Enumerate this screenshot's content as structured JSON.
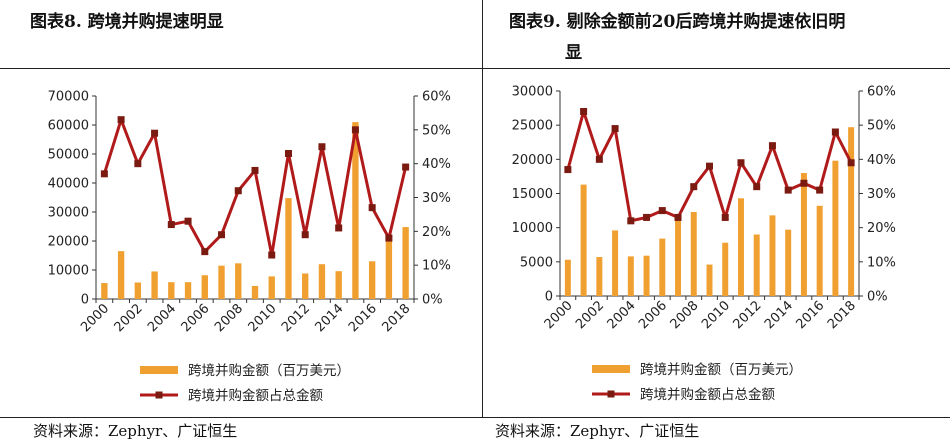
{
  "colors": {
    "bar": "#F0A030",
    "line": "#B01A1A",
    "marker": "#7A1A10",
    "axis": "#333333"
  },
  "left": {
    "title": "图表8. 跨境并购提速明显",
    "source": "资料来源：Zephyr、广证恒生",
    "chart_data": {
      "type": "bar",
      "title": "图表8. 跨境并购提速明显",
      "categories": [
        "2000",
        "2001",
        "2002",
        "2003",
        "2004",
        "2005",
        "2006",
        "2007",
        "2008",
        "2009",
        "2010",
        "2011",
        "2012",
        "2013",
        "2014",
        "2015",
        "2016",
        "2017",
        "2018"
      ],
      "x_tick_labels": [
        "2000",
        "2002",
        "2004",
        "2006",
        "2008",
        "2010",
        "2012",
        "2014",
        "2016",
        "2018"
      ],
      "series": [
        {
          "name": "跨境并购金额（百万美元）",
          "type": "bar",
          "axis": "left",
          "values": [
            5500,
            16500,
            5700,
            9500,
            5800,
            5800,
            8200,
            11500,
            12300,
            4500,
            7800,
            34800,
            8800,
            12000,
            9600,
            61000,
            13000,
            20000,
            24800
          ]
        },
        {
          "name": "跨境并购金额占总金额",
          "type": "line",
          "axis": "right",
          "values": [
            0.37,
            0.53,
            0.4,
            0.49,
            0.22,
            0.23,
            0.14,
            0.19,
            0.32,
            0.38,
            0.13,
            0.43,
            0.19,
            0.45,
            0.21,
            0.5,
            0.27,
            0.18,
            0.39
          ]
        }
      ],
      "ylim": [
        0,
        70000
      ],
      "yticks": [
        0,
        10000,
        20000,
        30000,
        40000,
        50000,
        60000,
        70000
      ],
      "y2lim": [
        0,
        0.6
      ],
      "y2ticks": [
        "0%",
        "10%",
        "20%",
        "30%",
        "40%",
        "50%",
        "60%"
      ],
      "legend": [
        "跨境并购金额（百万美元）",
        "跨境并购金额占总金额"
      ]
    }
  },
  "right": {
    "title_line1": "图表9. 剔除金额前20后跨境并购提速依旧明",
    "title_line2": "显",
    "source": "资料来源：Zephyr、广证恒生",
    "chart_data": {
      "type": "bar",
      "title": "图表9. 剔除金额前20后跨境并购提速依旧明显",
      "categories": [
        "2000",
        "2001",
        "2002",
        "2003",
        "2004",
        "2005",
        "2006",
        "2007",
        "2008",
        "2009",
        "2010",
        "2011",
        "2012",
        "2013",
        "2014",
        "2015",
        "2016",
        "2017",
        "2018"
      ],
      "x_tick_labels": [
        "2000",
        "2002",
        "2004",
        "2006",
        "2008",
        "2010",
        "2012",
        "2014",
        "2016",
        "2018"
      ],
      "series": [
        {
          "name": "跨境并购金额（百万美元）",
          "type": "bar",
          "axis": "left",
          "values": [
            5300,
            16300,
            5700,
            9600,
            5800,
            5900,
            8400,
            11800,
            12300,
            4600,
            7800,
            14300,
            9000,
            11800,
            9700,
            18000,
            13200,
            19800,
            24700
          ]
        },
        {
          "name": "跨境并购金额占总金额",
          "type": "line",
          "axis": "right",
          "values": [
            0.37,
            0.54,
            0.4,
            0.49,
            0.22,
            0.23,
            0.25,
            0.23,
            0.32,
            0.38,
            0.23,
            0.39,
            0.32,
            0.44,
            0.31,
            0.33,
            0.31,
            0.48,
            0.39
          ]
        }
      ],
      "ylim": [
        0,
        30000
      ],
      "yticks": [
        0,
        5000,
        10000,
        15000,
        20000,
        25000,
        30000
      ],
      "y2lim": [
        0,
        0.6
      ],
      "y2ticks": [
        "0%",
        "10%",
        "20%",
        "30%",
        "40%",
        "50%",
        "60%"
      ],
      "legend": [
        "跨境并购金额（百万美元）",
        "跨境并购金额占总金额"
      ]
    }
  }
}
